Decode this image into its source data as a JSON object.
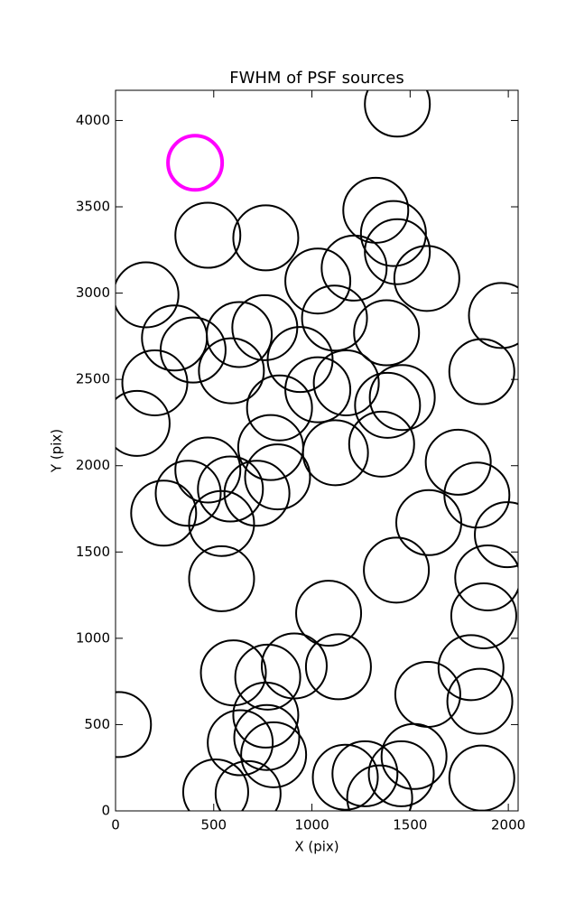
{
  "chart_data": {
    "type": "scatter",
    "title": "FWHM of PSF sources",
    "xlabel": "X (pix)",
    "ylabel": "Y (pix)",
    "xlim": [
      0,
      2050
    ],
    "ylim": [
      0,
      4175
    ],
    "xticks": [
      0,
      500,
      1000,
      1500,
      2000
    ],
    "yticks": [
      0,
      500,
      1000,
      1500,
      2000,
      2500,
      3000,
      3500,
      4000
    ],
    "series": [
      {
        "color": "#000000",
        "x": [
          1435,
          15,
          470,
          765,
          1325,
          1415,
          1435,
          1215,
          1030,
          1585,
          155,
          1965,
          1115,
          760,
          630,
          1380,
          300,
          395,
          940,
          590,
          1175,
          1865,
          200,
          1030,
          1460,
          1385,
          835,
          110,
          1355,
          790,
          1120,
          1745,
          470,
          825,
          1840,
          370,
          585,
          720,
          245,
          540,
          1595,
          1995,
          540,
          1430,
          1895,
          1085,
          1875,
          600,
          775,
          910,
          1135,
          1810,
          1590,
          1855,
          765,
          635,
          770,
          805,
          1520,
          1170,
          1270,
          1455,
          1865,
          510,
          675,
          1345
        ],
        "y": [
          4095,
          500,
          3335,
          3320,
          3480,
          3345,
          3240,
          3145,
          3070,
          3085,
          2990,
          2870,
          2855,
          2800,
          2760,
          2770,
          2740,
          2670,
          2615,
          2550,
          2480,
          2545,
          2480,
          2440,
          2395,
          2350,
          2335,
          2245,
          2125,
          2105,
          2075,
          2020,
          1975,
          1935,
          1830,
          1840,
          1865,
          1840,
          1725,
          1665,
          1670,
          1600,
          1345,
          1395,
          1350,
          1145,
          1130,
          800,
          775,
          840,
          835,
          830,
          675,
          635,
          555,
          395,
          425,
          325,
          315,
          195,
          215,
          215,
          190,
          110,
          100,
          75
        ]
      },
      {
        "color": "#ff00ff",
        "x": [
          405
        ],
        "y": [
          3755
        ]
      }
    ]
  }
}
